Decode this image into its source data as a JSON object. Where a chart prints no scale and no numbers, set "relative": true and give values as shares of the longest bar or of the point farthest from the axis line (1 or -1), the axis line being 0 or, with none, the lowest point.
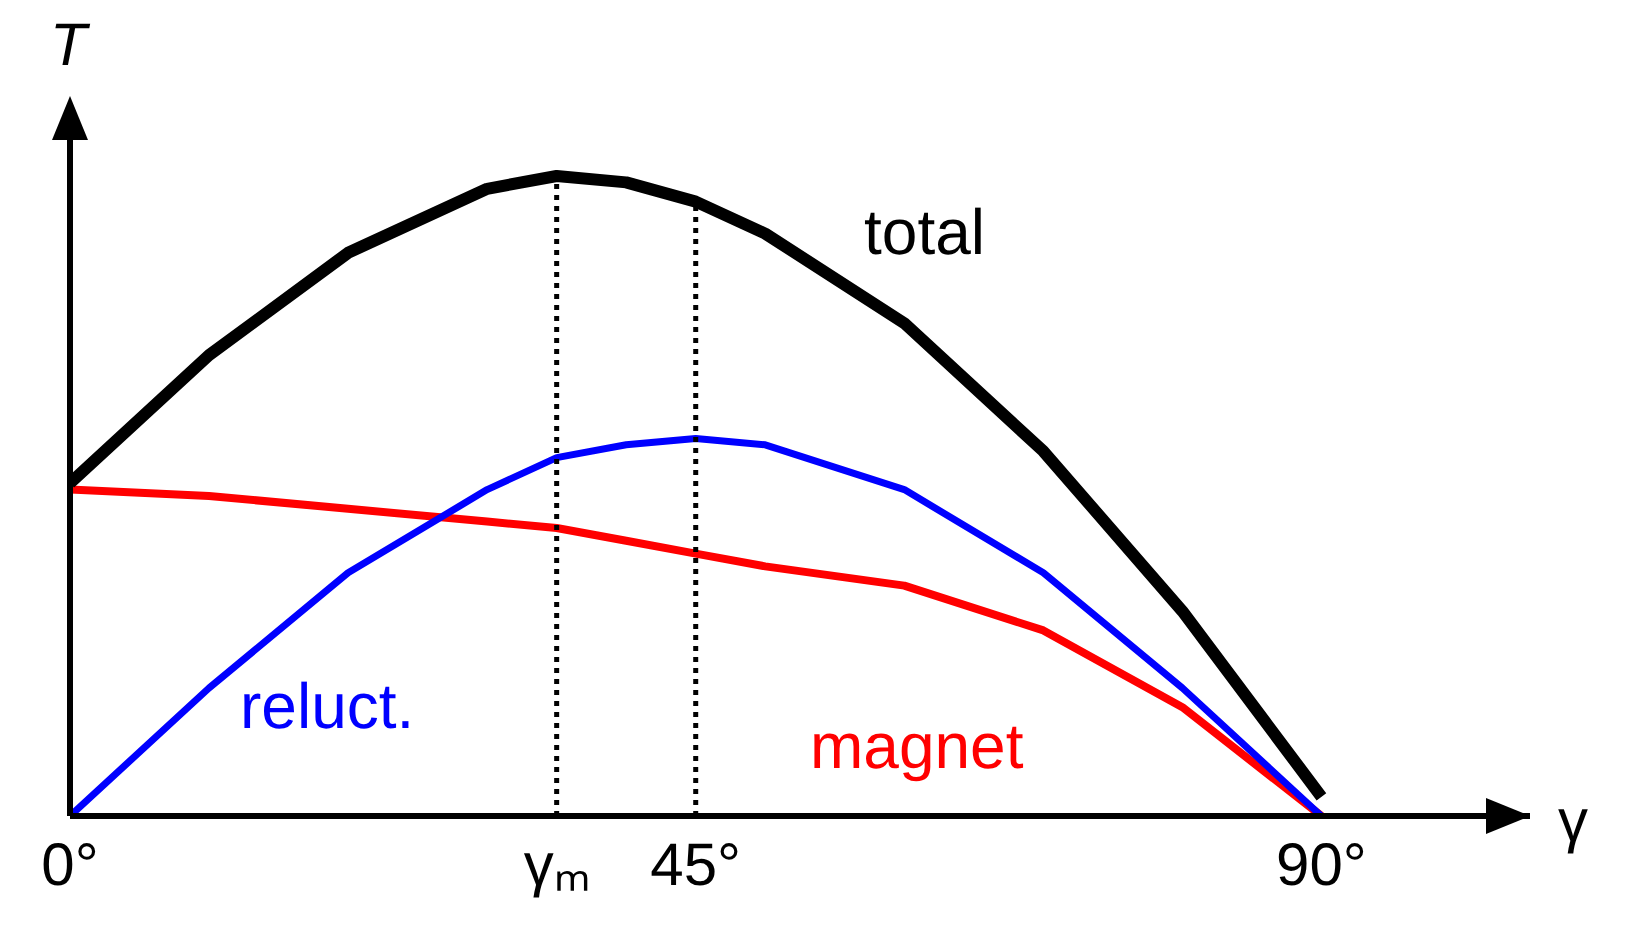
{
  "chart_data": {
    "type": "line",
    "relative": true,
    "xlabel": "γ",
    "ylabel": "T",
    "xlim": [
      0,
      105
    ],
    "xticks": [
      {
        "value": 0,
        "label": "0°"
      },
      {
        "value": 35,
        "label": "γₘ"
      },
      {
        "value": 45,
        "label": "45°"
      },
      {
        "value": 90,
        "label": "90°"
      }
    ],
    "x": [
      0,
      10,
      20,
      30,
      35,
      40,
      45,
      50,
      60,
      70,
      80,
      90
    ],
    "series": [
      {
        "name": "total",
        "color": "#000000",
        "values": [
          0.52,
          0.72,
          0.88,
          0.98,
          1.0,
          0.99,
          0.96,
          0.91,
          0.77,
          0.57,
          0.32,
          0.03
        ]
      },
      {
        "name": "reluct.",
        "color": "#0000ff",
        "values": [
          0,
          0.2,
          0.38,
          0.51,
          0.56,
          0.58,
          0.59,
          0.58,
          0.51,
          0.38,
          0.2,
          0
        ]
      },
      {
        "name": "magnet",
        "color": "#ff0000",
        "values": [
          0.51,
          0.5,
          0.48,
          0.46,
          0.45,
          0.43,
          0.41,
          0.39,
          0.36,
          0.29,
          0.17,
          0
        ]
      }
    ],
    "ref_lines": [
      {
        "axis": "x",
        "value": 35,
        "color": "#000000",
        "line_style": "dotted"
      },
      {
        "axis": "x",
        "value": 45,
        "color": "#000000",
        "line_style": "dotted"
      }
    ],
    "grid": false,
    "legend": false,
    "marker": "none",
    "line_style": "solid"
  }
}
